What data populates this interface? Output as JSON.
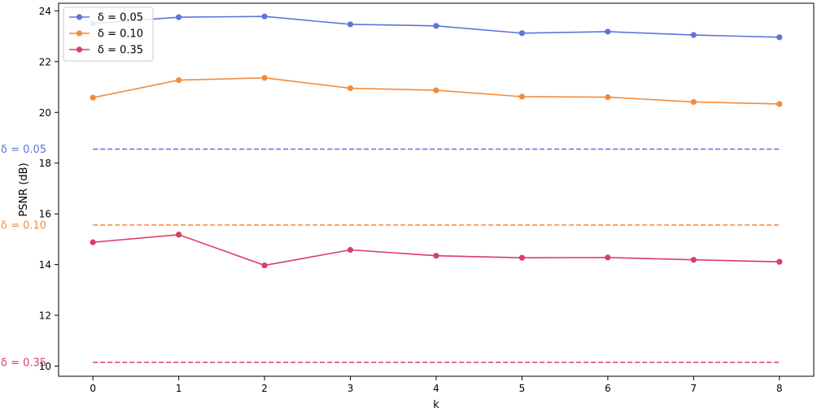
{
  "chart_data": {
    "type": "line",
    "title": "",
    "xlabel": "k",
    "ylabel": "PSNR (dB)",
    "x": [
      0,
      1,
      2,
      3,
      4,
      5,
      6,
      7,
      8
    ],
    "xlim": [
      -0.4,
      8.4
    ],
    "ylim": [
      9.6,
      24.3
    ],
    "xticks": [
      "0",
      "1",
      "2",
      "3",
      "4",
      "5",
      "6",
      "7",
      "8"
    ],
    "yticks": [
      "10",
      "12",
      "14",
      "16",
      "18",
      "20",
      "22",
      "24"
    ],
    "grid": false,
    "legend_position": "top-left",
    "series": [
      {
        "name": "δ = 0.05",
        "color": "#5c75d9",
        "values": [
          23.5,
          23.75,
          23.78,
          23.47,
          23.41,
          23.12,
          23.18,
          23.05,
          22.96
        ]
      },
      {
        "name": "δ = 0.10",
        "color": "#f28c3c",
        "values": [
          20.58,
          21.27,
          21.36,
          20.95,
          20.87,
          20.62,
          20.6,
          20.41,
          20.33
        ]
      },
      {
        "name": "δ = 0.35",
        "color": "#db3d64",
        "values": [
          14.88,
          15.18,
          13.97,
          14.58,
          14.35,
          14.27,
          14.28,
          14.19,
          14.11
        ]
      }
    ],
    "reference_lines": [
      {
        "label": "δ = 0.05",
        "value": 18.55,
        "color": "#5c75d9"
      },
      {
        "label": "δ = 0.10",
        "value": 15.56,
        "color": "#f28c3c"
      },
      {
        "label": "δ = 0.35",
        "value": 10.15,
        "color": "#db3d64"
      }
    ]
  }
}
